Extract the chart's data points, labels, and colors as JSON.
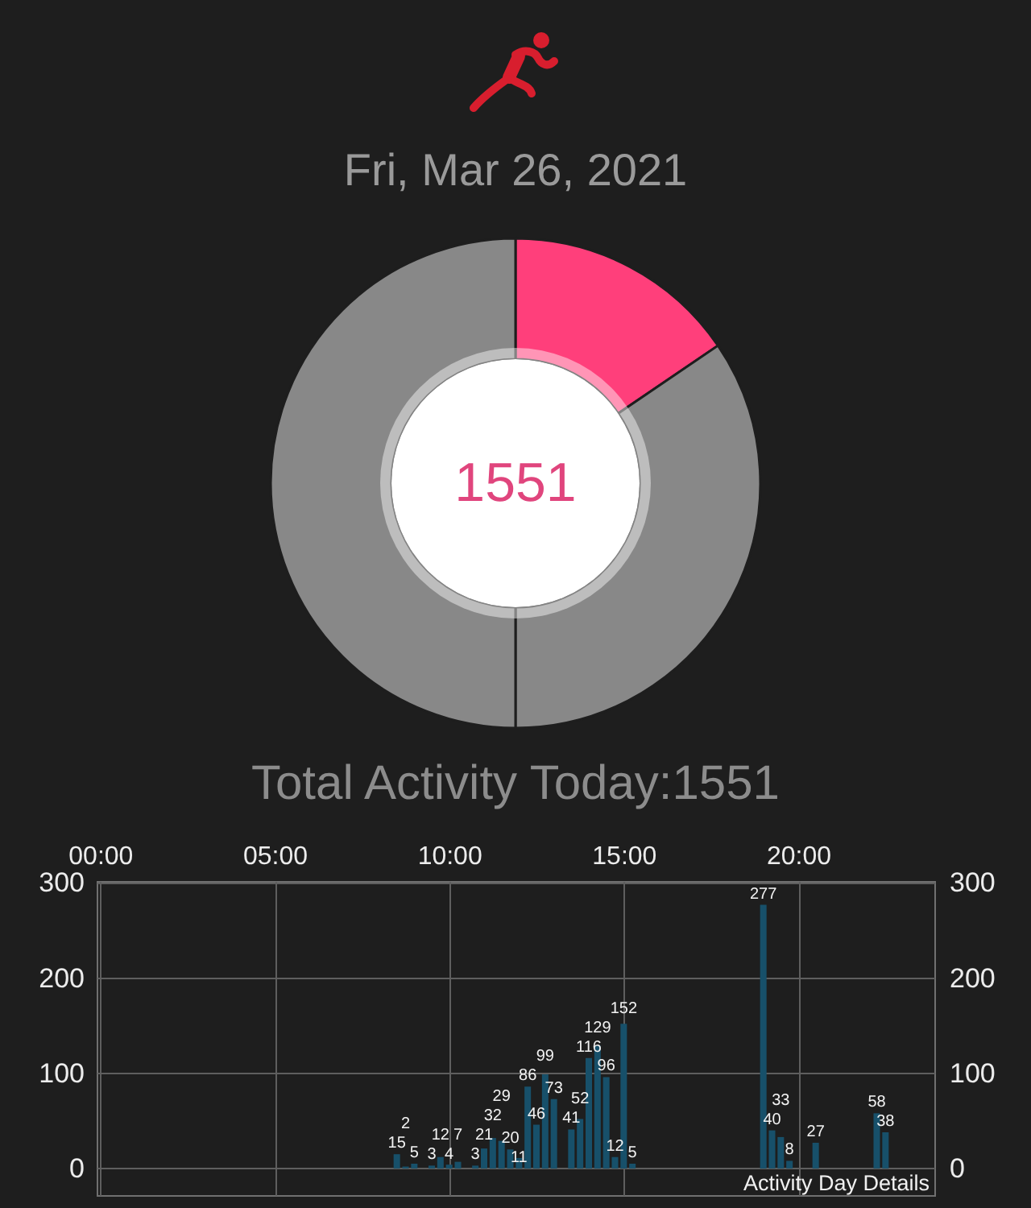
{
  "chart_data": [
    {
      "type": "donut",
      "title": "Fri, Mar 26, 2021",
      "categories": [
        null,
        null,
        null
      ],
      "values": [
        15.5,
        34.5,
        50
      ],
      "colors": [
        "#ff3f7b",
        "#888888",
        "#888888"
      ],
      "annotations": [
        "1551",
        "Total Activity Today:1551"
      ]
    },
    {
      "type": "bar",
      "x": [
        8.5,
        8.75,
        9,
        9.5,
        9.75,
        10,
        10.25,
        10.75,
        11,
        11.25,
        11.5,
        11.75,
        12,
        12.25,
        12.5,
        12.75,
        13,
        13.5,
        13.75,
        14,
        14.25,
        14.5,
        14.75,
        15,
        15.25,
        19,
        19.25,
        19.5,
        19.75,
        20.5,
        22.25,
        22.5
      ],
      "values": [
        15,
        2,
        5,
        3,
        12,
        4,
        7,
        3,
        21,
        32,
        29,
        20,
        11,
        86,
        46,
        99,
        73,
        41,
        52,
        116,
        129,
        96,
        12,
        152,
        5,
        277,
        40,
        33,
        8,
        27,
        58,
        38
      ],
      "color": "#17506a",
      "xlim": [
        -0.1,
        23.9
      ],
      "xticks": [
        {
          "value": 0,
          "label": "00:00"
        },
        {
          "value": 5,
          "label": "05:00"
        },
        {
          "value": 10,
          "label": "10:00"
        },
        {
          "value": 15,
          "label": "15:00"
        },
        {
          "value": 20,
          "label": "20:00"
        }
      ],
      "ylim": [
        -28,
        302
      ],
      "yticks": [
        0,
        100,
        200,
        300
      ],
      "y2lim": [
        -28,
        302
      ],
      "y2ticks": [
        0,
        100,
        200,
        300
      ],
      "grid": true,
      "data_labels": true,
      "annotations": [
        "Activity Day Details"
      ]
    }
  ]
}
